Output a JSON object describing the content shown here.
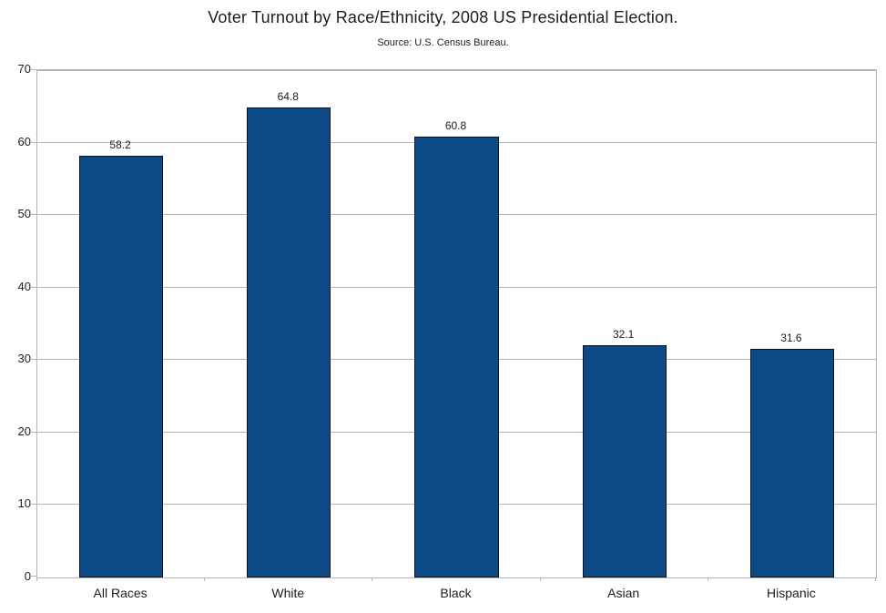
{
  "chart_data": {
    "type": "bar",
    "title": "Voter Turnout by Race/Ethnicity, 2008 US Presidential Election.",
    "subtitle": "Source: U.S. Census Bureau.",
    "categories": [
      "All Races",
      "White",
      "Black",
      "Asian",
      "Hispanic"
    ],
    "values": [
      58.2,
      64.8,
      60.8,
      32.1,
      31.6
    ],
    "value_labels": [
      "58.2",
      "64.8",
      "60.8",
      "32.1",
      "31.6"
    ],
    "xlabel": "",
    "ylabel": "",
    "ylim": [
      0,
      70
    ],
    "yticks": [
      0,
      10,
      20,
      30,
      40,
      50,
      60,
      70
    ],
    "grid": true,
    "legend": "none",
    "bar_width_fraction": 0.5,
    "colors": {
      "bar_fill": "#0b4a85",
      "bar_border": "#10101c",
      "grid_line": "#b5b5b5",
      "axis_line": "#b5b5b5",
      "text": "#1c1c1c",
      "background": "#ffffff"
    }
  }
}
